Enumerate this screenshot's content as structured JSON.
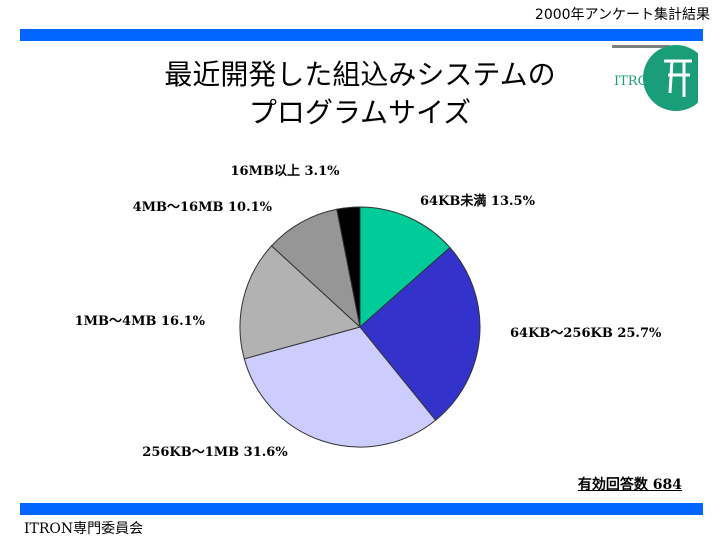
{
  "header": {
    "survey_label": "2000年アンケート集計結果"
  },
  "logo": {
    "text": "ITRON",
    "accent_color": "#1a9e7a"
  },
  "title": {
    "line1": "最近開発した組込みシステムの",
    "line2": "プログラムサイズ"
  },
  "respondents": "有効回答数 684",
  "footer": {
    "committee": "ITRON専門委員会"
  },
  "colors": {
    "bar": "#0066ff"
  },
  "chart_data": {
    "type": "pie",
    "title": "最近開発した組込みシステムのプログラムサイズ",
    "start_angle_deg": 0,
    "direction": "clockwise",
    "slices": [
      {
        "label": "64KB未満 13.5%",
        "category": "64KB未満",
        "value": 13.5,
        "color": "#00cc99"
      },
      {
        "label": "64KB〜256KB 25.7%",
        "category": "64KB〜256KB",
        "value": 25.7,
        "color": "#3333cc"
      },
      {
        "label": "256KB〜1MB 31.6%",
        "category": "256KB〜1MB",
        "value": 31.6,
        "color": "#ccccff"
      },
      {
        "label": "1MB〜4MB 16.1%",
        "category": "1MB〜4MB",
        "value": 16.1,
        "color": "#b2b2b2"
      },
      {
        "label": "4MB〜16MB 10.1%",
        "category": "4MB〜16MB",
        "value": 10.1,
        "color": "#969696"
      },
      {
        "label": "16MB以上 3.1%",
        "category": "16MB以上",
        "value": 3.1,
        "color": "#000000"
      }
    ]
  }
}
